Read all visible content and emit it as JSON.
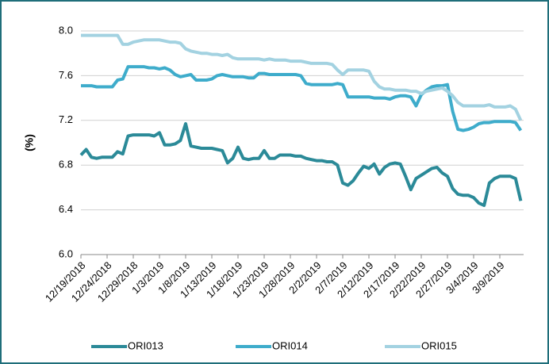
{
  "chart_data": {
    "type": "line",
    "y_label": "(%)",
    "categories": [
      "12/19/2018",
      null,
      null,
      null,
      null,
      "12/24/2018",
      null,
      null,
      null,
      null,
      "12/29/2018",
      null,
      null,
      null,
      null,
      "1/3/2019",
      null,
      null,
      null,
      null,
      "1/8/2019",
      null,
      null,
      null,
      null,
      "1/13/2019",
      null,
      null,
      null,
      null,
      "1/18/2019",
      null,
      null,
      null,
      null,
      "1/23/2019",
      null,
      null,
      null,
      null,
      "1/28/2019",
      null,
      null,
      null,
      null,
      "2/2/2019",
      null,
      null,
      null,
      null,
      "2/7/2019",
      null,
      null,
      null,
      null,
      "2/12/2019",
      null,
      null,
      null,
      null,
      "2/17/2019",
      null,
      null,
      null,
      null,
      "2/22/2019",
      null,
      null,
      null,
      null,
      "2/27/2019",
      null,
      null,
      null,
      null,
      "3/4/2019",
      null,
      null,
      null,
      null,
      "3/9/2019",
      null,
      null,
      null,
      null
    ],
    "series": [
      {
        "name": "ORI013",
        "color": "#2b8a98",
        "values": [
          6.89,
          6.94,
          6.87,
          6.86,
          6.87,
          6.87,
          6.87,
          6.92,
          6.9,
          7.06,
          7.07,
          7.07,
          7.07,
          7.07,
          7.06,
          7.09,
          6.98,
          6.98,
          6.99,
          7.02,
          7.17,
          6.97,
          6.96,
          6.95,
          6.95,
          6.95,
          6.94,
          6.93,
          6.82,
          6.86,
          6.96,
          6.86,
          6.85,
          6.86,
          6.86,
          6.93,
          6.86,
          6.86,
          6.89,
          6.89,
          6.89,
          6.88,
          6.88,
          6.86,
          6.85,
          6.84,
          6.84,
          6.83,
          6.83,
          6.8,
          6.64,
          6.62,
          6.66,
          6.73,
          6.79,
          6.77,
          6.81,
          6.72,
          6.78,
          6.81,
          6.82,
          6.81,
          6.7,
          6.58,
          6.68,
          6.71,
          6.74,
          6.77,
          6.78,
          6.73,
          6.7,
          6.59,
          6.54,
          6.53,
          6.53,
          6.51,
          6.46,
          6.44,
          6.64,
          6.68,
          6.7,
          6.7,
          6.7,
          6.68,
          6.48
        ]
      },
      {
        "name": "ORI014",
        "color": "#3eaccb",
        "values": [
          7.51,
          7.51,
          7.51,
          7.5,
          7.5,
          7.5,
          7.5,
          7.56,
          7.57,
          7.68,
          7.68,
          7.68,
          7.68,
          7.67,
          7.67,
          7.66,
          7.67,
          7.65,
          7.61,
          7.59,
          7.6,
          7.61,
          7.56,
          7.56,
          7.56,
          7.57,
          7.6,
          7.61,
          7.6,
          7.59,
          7.59,
          7.59,
          7.58,
          7.58,
          7.62,
          7.62,
          7.61,
          7.61,
          7.61,
          7.61,
          7.61,
          7.61,
          7.6,
          7.53,
          7.52,
          7.52,
          7.52,
          7.52,
          7.52,
          7.53,
          7.52,
          7.41,
          7.41,
          7.41,
          7.41,
          7.41,
          7.4,
          7.4,
          7.4,
          7.39,
          7.41,
          7.42,
          7.42,
          7.41,
          7.33,
          7.43,
          7.47,
          7.5,
          7.51,
          7.51,
          7.52,
          7.28,
          7.12,
          7.11,
          7.12,
          7.14,
          7.17,
          7.18,
          7.18,
          7.19,
          7.19,
          7.19,
          7.19,
          7.18,
          7.11
        ]
      },
      {
        "name": "ORI015",
        "color": "#a3d2e1",
        "values": [
          7.96,
          7.96,
          7.96,
          7.96,
          7.96,
          7.96,
          7.96,
          7.96,
          7.88,
          7.88,
          7.9,
          7.91,
          7.92,
          7.92,
          7.92,
          7.92,
          7.91,
          7.9,
          7.9,
          7.89,
          7.84,
          7.82,
          7.81,
          7.8,
          7.8,
          7.79,
          7.79,
          7.78,
          7.79,
          7.76,
          7.75,
          7.75,
          7.75,
          7.75,
          7.75,
          7.74,
          7.75,
          7.74,
          7.74,
          7.74,
          7.73,
          7.73,
          7.73,
          7.72,
          7.71,
          7.71,
          7.71,
          7.71,
          7.7,
          7.65,
          7.61,
          7.65,
          7.65,
          7.65,
          7.65,
          7.64,
          7.55,
          7.5,
          7.48,
          7.48,
          7.47,
          7.47,
          7.47,
          7.46,
          7.46,
          7.44,
          7.46,
          7.47,
          7.48,
          7.49,
          7.46,
          7.42,
          7.36,
          7.33,
          7.33,
          7.33,
          7.33,
          7.33,
          7.34,
          7.32,
          7.32,
          7.32,
          7.33,
          7.3,
          7.2
        ]
      }
    ],
    "ylim": [
      6.0,
      8.0
    ],
    "yticks": [
      {
        "value": 6.0,
        "label": "6.0"
      },
      6.4,
      6.8,
      7.2,
      7.6,
      {
        "value": 8.0,
        "label": "8.0"
      }
    ],
    "grid": true,
    "legend": "bottom"
  }
}
